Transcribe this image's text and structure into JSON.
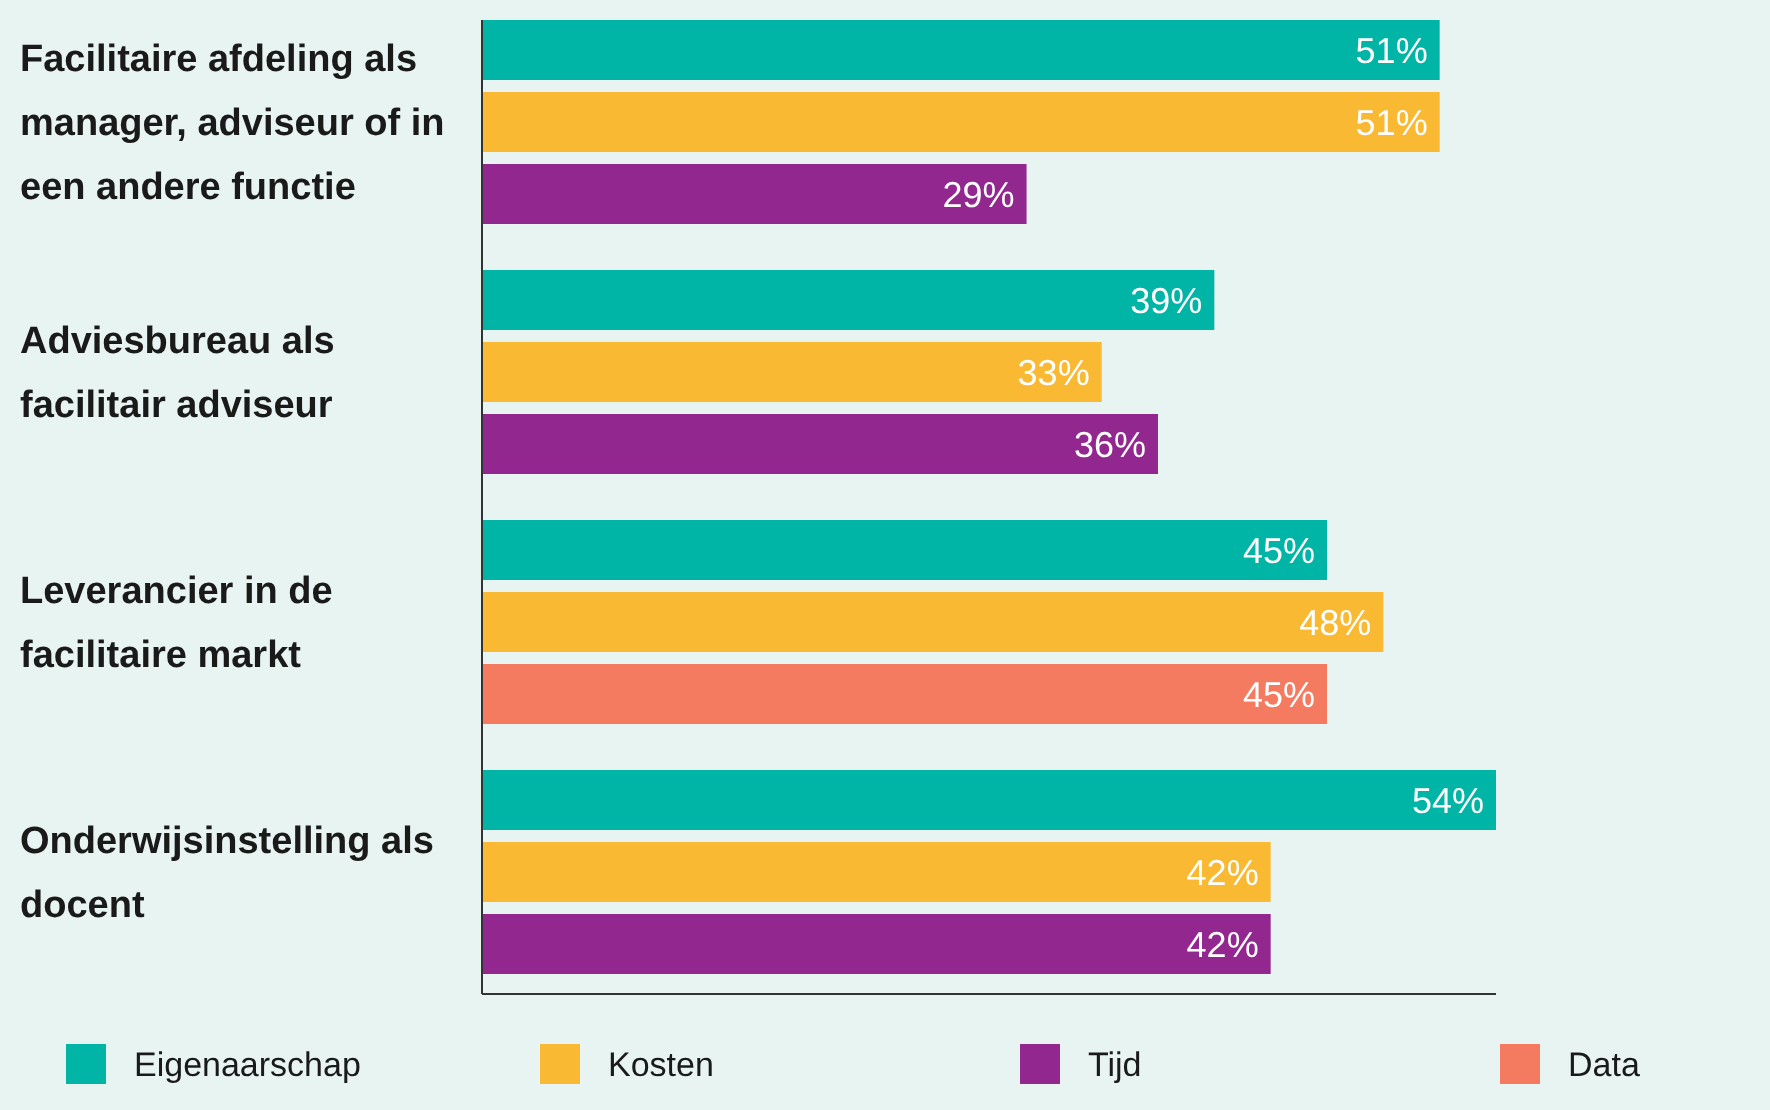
{
  "chart_data": {
    "type": "bar",
    "orientation": "horizontal",
    "categories": [
      "Facilitaire afdeling als manager, adviseur of in een andere functie",
      "Adviesbureau als facilitair adviseur",
      "Leverancier in de facilitaire markt",
      "Onderwijsinstelling als docent"
    ],
    "series": [
      {
        "name": "Eigenaarschap",
        "color": "#00b5a5",
        "values": [
          51,
          39,
          45,
          54
        ],
        "value_labels": [
          "51%",
          "39%",
          "45%",
          "54%"
        ]
      },
      {
        "name": "Kosten",
        "color": "#f9b933",
        "values": [
          51,
          33,
          48,
          42
        ],
        "value_labels": [
          "51%",
          "33%",
          "48%",
          "42%"
        ]
      },
      {
        "name": "Tijd",
        "color": "#92278f",
        "values": [
          29,
          36,
          null,
          42
        ],
        "value_labels": [
          "29%",
          "36%",
          null,
          "42%"
        ]
      },
      {
        "name": "Data",
        "color": "#f47a60",
        "values": [
          null,
          null,
          45,
          null
        ],
        "value_labels": [
          null,
          null,
          "45%",
          null
        ]
      }
    ],
    "xlim": [
      0,
      54
    ],
    "tick_labels": "y",
    "grid": false,
    "legend": "bottom"
  }
}
